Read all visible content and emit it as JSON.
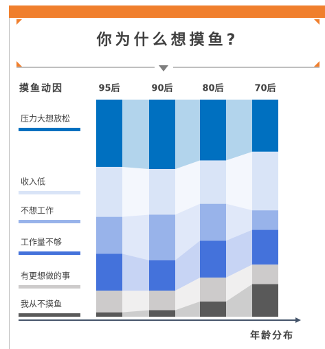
{
  "chart_data": {
    "type": "stacked-bar-100",
    "title": "你为什么想摸鱼?",
    "legend_title": "摸鱼动因",
    "xlabel": "年龄分布",
    "categories": [
      "95后",
      "90后",
      "80后",
      "70后"
    ],
    "ylim": [
      0,
      100
    ],
    "series": [
      {
        "name": "压力大想放松",
        "color": "#0070c0",
        "values": [
          31,
          32,
          28,
          24
        ]
      },
      {
        "name": "收入低",
        "color": "#d9e4f7",
        "values": [
          23,
          21,
          20,
          27
        ]
      },
      {
        "name": "不想工作",
        "color": "#98b3ea",
        "values": [
          17,
          21,
          17,
          9
        ]
      },
      {
        "name": "工作量不够",
        "color": "#4472db",
        "values": [
          17,
          14,
          17,
          16
        ]
      },
      {
        "name": "有更想做的事",
        "color": "#cdcbcb",
        "values": [
          10,
          9,
          11,
          9
        ]
      },
      {
        "name": "我从不摸鱼",
        "color": "#595959",
        "values": [
          2,
          3,
          7,
          15
        ]
      }
    ]
  }
}
